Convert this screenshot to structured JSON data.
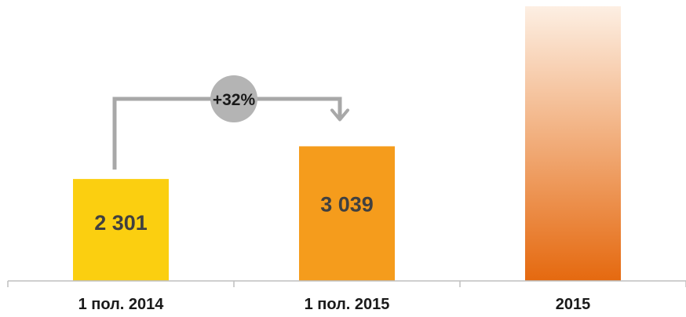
{
  "chart_data": {
    "type": "bar",
    "categories": [
      "1 пол. 2014",
      "1 пол. 2015",
      "2015"
    ],
    "values": [
      2301,
      3039,
      6200
    ],
    "value_labels": [
      "2 301",
      "3 039",
      ""
    ],
    "bar_styles": [
      "solid",
      "solid",
      "gradient"
    ],
    "growth": {
      "label": "+32%",
      "from_index": 0,
      "to_index": 1
    },
    "colors": {
      "bar_1": "#FBCF10",
      "bar_2": "#F59C1C",
      "bar_3_top": "#FDEFE3",
      "bar_3_bottom": "#E5690F",
      "arrow": "#A8A8A8",
      "growth_circle": "#B4B4B4",
      "axis": "#BFBFBF",
      "text": "#1A1A1A",
      "value_text": "#404040"
    },
    "xlabel": "",
    "ylabel": "",
    "ylim": [
      0,
      6200
    ],
    "grid": false,
    "legend": "none"
  }
}
